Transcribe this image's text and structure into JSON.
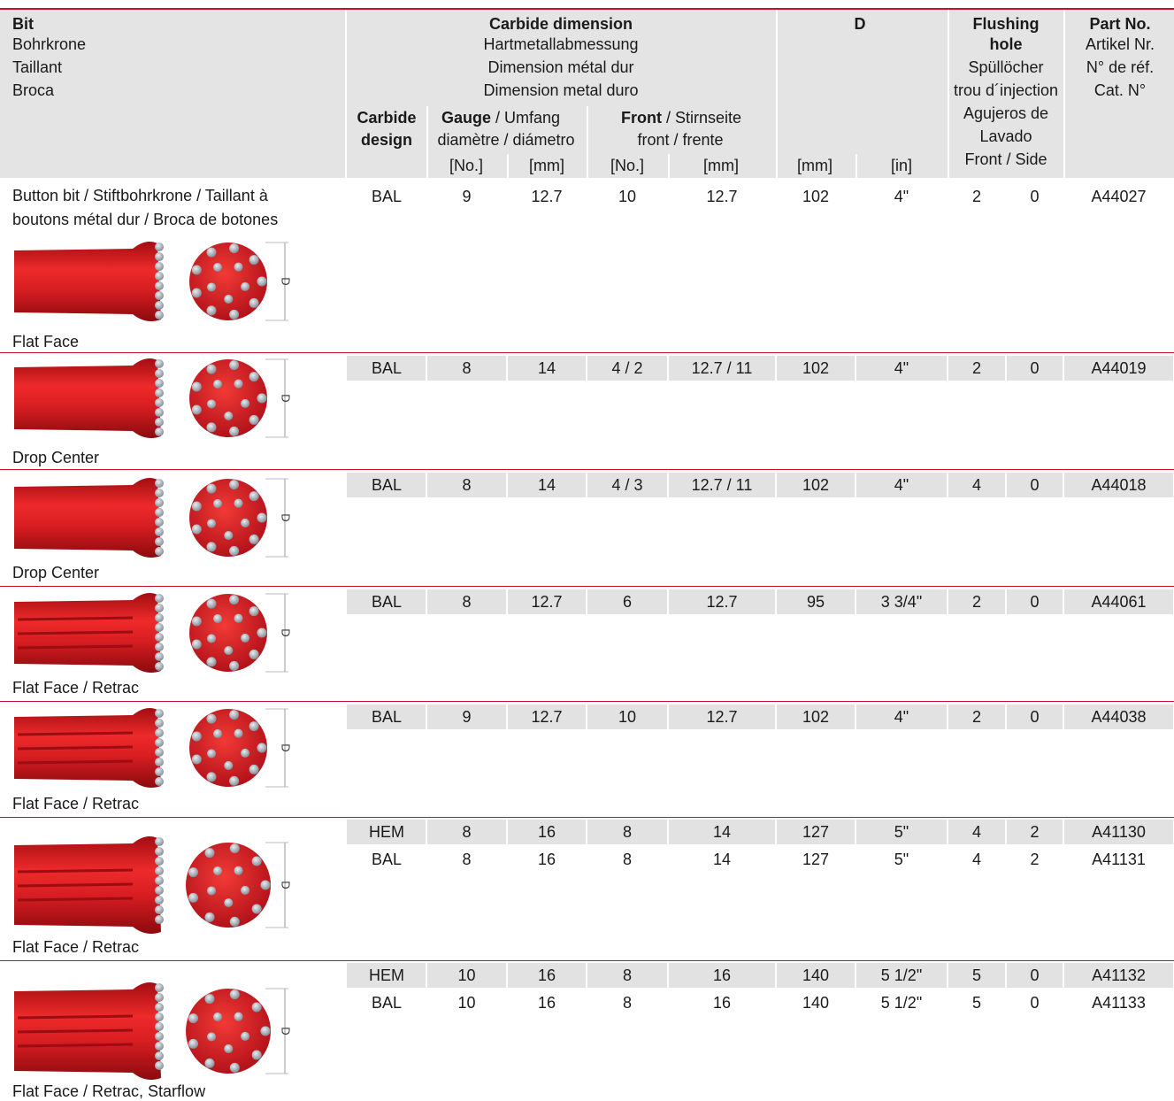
{
  "header": {
    "bit": {
      "title": "Bit",
      "lines": [
        "Bohrkrone",
        "Taillant",
        "Broca"
      ]
    },
    "carbide_dimension": {
      "title": "Carbide dimension",
      "lines": [
        "Hartmetallabmessung",
        "Dimension métal dur",
        "Dimension metal duro"
      ],
      "carbide_design": [
        "Carbide",
        "design"
      ],
      "gauge": {
        "title": "Gauge",
        "title_rest": " / Umfang",
        "line2": "diamètre / diámetro"
      },
      "front": {
        "title": "Front",
        "title_rest": " / Stirnseite",
        "line2": "front / frente"
      },
      "units": [
        "[No.]",
        "[mm]",
        "[No.]",
        "[mm]"
      ]
    },
    "d": {
      "title": "D",
      "units": [
        "[mm]",
        "[in]"
      ]
    },
    "flushing_hole": {
      "title": [
        "Flushing",
        "hole"
      ],
      "lines": [
        "Spüllöcher",
        "trou d´injection",
        "Agujeros de",
        "Lavado",
        "Front / Side"
      ]
    },
    "part_no": {
      "title": "Part No.",
      "lines": [
        "Artikel Nr.",
        "N° de réf.",
        "Cat. N°"
      ]
    }
  },
  "groups": [
    {
      "description": [
        "Button bit / Stiftbohrkrone / Taillant à",
        "boutons métal dur / Broca de botones"
      ],
      "image_label": "D",
      "caption": "Flat Face",
      "rows": [
        [
          "BAL",
          "9",
          "12.7",
          "10",
          "12.7",
          "102",
          "4\"",
          "2",
          "0",
          "A44027"
        ]
      ]
    },
    {
      "image_label": "D",
      "caption": "Drop Center",
      "rows": [
        [
          "BAL",
          "8",
          "14",
          "4 / 2",
          "12.7 / 11",
          "102",
          "4\"",
          "2",
          "0",
          "A44019"
        ]
      ]
    },
    {
      "image_label": "D",
      "caption": "Drop Center",
      "rows": [
        [
          "BAL",
          "8",
          "14",
          "4 / 3",
          "12.7 / 11",
          "102",
          "4\"",
          "4",
          "0",
          "A44018"
        ]
      ]
    },
    {
      "image_label": "D",
      "caption": "Flat Face / Retrac",
      "rows": [
        [
          "BAL",
          "8",
          "12.7",
          "6",
          "12.7",
          "95",
          "3 3/4\"",
          "2",
          "0",
          "A44061"
        ]
      ]
    },
    {
      "image_label": "D",
      "caption": "Flat Face / Retrac",
      "rows": [
        [
          "BAL",
          "9",
          "12.7",
          "10",
          "12.7",
          "102",
          "4\"",
          "2",
          "0",
          "A44038"
        ]
      ]
    },
    {
      "image_label": "D",
      "caption": "Flat Face / Retrac",
      "rows": [
        [
          "HEM",
          "8",
          "16",
          "8",
          "14",
          "127",
          "5\"",
          "4",
          "2",
          "A41130"
        ],
        [
          "BAL",
          "8",
          "16",
          "8",
          "14",
          "127",
          "5\"",
          "4",
          "2",
          "A41131"
        ]
      ]
    },
    {
      "image_label": "D",
      "caption": "Flat Face / Retrac, Starflow",
      "rows": [
        [
          "HEM",
          "10",
          "16",
          "8",
          "16",
          "140",
          "5 1/2\"",
          "5",
          "0",
          "A41132"
        ],
        [
          "BAL",
          "10",
          "16",
          "8",
          "16",
          "140",
          "5 1/2\"",
          "5",
          "0",
          "A41133"
        ]
      ]
    }
  ]
}
